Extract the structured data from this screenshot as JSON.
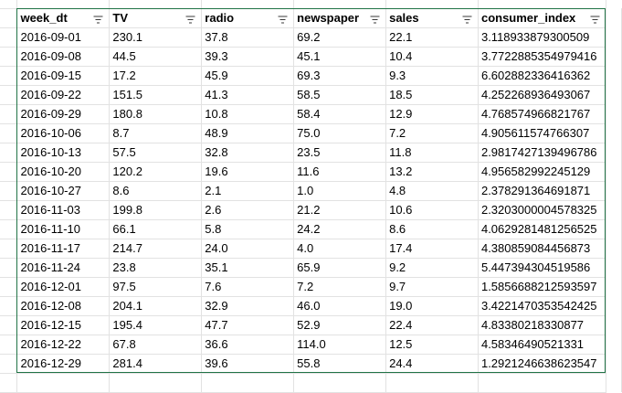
{
  "table": {
    "columns": [
      "week_dt",
      "TV",
      "radio",
      "newspaper",
      "sales",
      "consumer_index"
    ],
    "rows": [
      [
        "2016-09-01",
        "230.1",
        "37.8",
        "69.2",
        "22.1",
        "3.118933879300509"
      ],
      [
        "2016-09-08",
        "44.5",
        "39.3",
        "45.1",
        "10.4",
        "3.7722885354979416"
      ],
      [
        "2016-09-15",
        "17.2",
        "45.9",
        "69.3",
        "9.3",
        "6.602882336416362"
      ],
      [
        "2016-09-22",
        "151.5",
        "41.3",
        "58.5",
        "18.5",
        "4.252268936493067"
      ],
      [
        "2016-09-29",
        "180.8",
        "10.8",
        "58.4",
        "12.9",
        "4.768574966821767"
      ],
      [
        "2016-10-06",
        "8.7",
        "48.9",
        "75.0",
        "7.2",
        "4.905611574766307"
      ],
      [
        "2016-10-13",
        "57.5",
        "32.8",
        "23.5",
        "11.8",
        "2.9817427139496786"
      ],
      [
        "2016-10-20",
        "120.2",
        "19.6",
        "11.6",
        "13.2",
        "4.956582992245129"
      ],
      [
        "2016-10-27",
        "8.6",
        "2.1",
        "1.0",
        "4.8",
        "2.378291364691871"
      ],
      [
        "2016-11-03",
        "199.8",
        "2.6",
        "21.2",
        "10.6",
        "2.3203000004578325"
      ],
      [
        "2016-11-10",
        "66.1",
        "5.8",
        "24.2",
        "8.6",
        "4.0629281481256525"
      ],
      [
        "2016-11-17",
        "214.7",
        "24.0",
        "4.0",
        "17.4",
        "4.380859084456873"
      ],
      [
        "2016-11-24",
        "23.8",
        "35.1",
        "65.9",
        "9.2",
        "5.447394304519586"
      ],
      [
        "2016-12-01",
        "97.5",
        "7.6",
        "7.2",
        "9.7",
        "1.5856688212593597"
      ],
      [
        "2016-12-08",
        "204.1",
        "32.9",
        "46.0",
        "19.0",
        "3.4221470353542425"
      ],
      [
        "2016-12-15",
        "195.4",
        "47.7",
        "52.9",
        "22.4",
        "4.83380218330877"
      ],
      [
        "2016-12-22",
        "67.8",
        "36.6",
        "114.0",
        "12.5",
        "4.58346490521331"
      ],
      [
        "2016-12-29",
        "281.4",
        "39.6",
        "55.8",
        "24.4",
        "1.2921246638623547"
      ]
    ]
  },
  "icons": {
    "filter": "filter-funnel-icon"
  },
  "colors": {
    "table_border": "#217346",
    "gridline": "#e2e2e2",
    "filter_icon": "#3a3a3a"
  }
}
